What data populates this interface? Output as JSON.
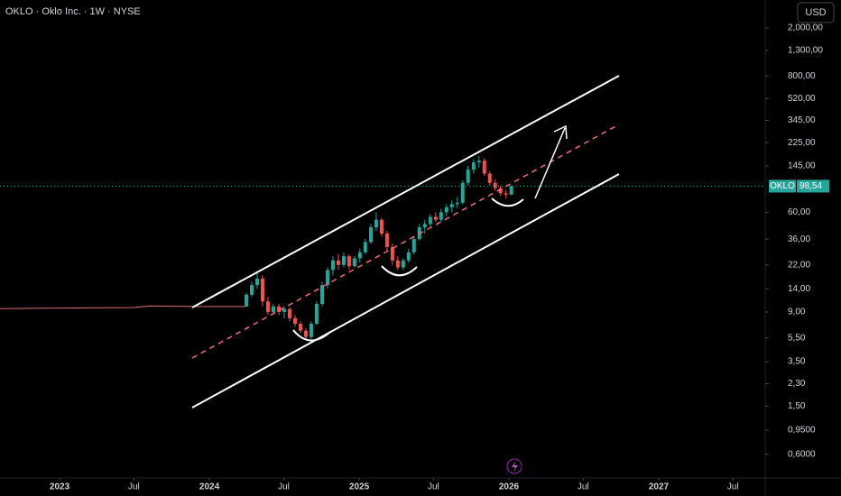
{
  "chart_data": {
    "type": "candlestick",
    "title": "OKLO · Oklo Inc. · 1W · NYSE",
    "currency": "USD",
    "symbol": "OKLO",
    "last_price_label": "98,54",
    "log_scale": true,
    "up_color": "#26a69a",
    "down_color": "#ef5350",
    "xlim": [
      2022.602,
      2027.711
    ],
    "xticks": [
      2023,
      {
        "value": 2023.496,
        "label": "Jul"
      },
      2024,
      {
        "value": 2024.497,
        "label": "Jul"
      },
      2025,
      {
        "value": 2025.496,
        "label": "Jul"
      },
      2026,
      {
        "value": 2026.496,
        "label": "Jul"
      },
      2027,
      {
        "value": 2027.496,
        "label": "Jul"
      }
    ],
    "ylim": [
      0.383,
      3400
    ],
    "yticks": [
      {
        "value": 2000,
        "label": "2,000,00"
      },
      {
        "value": 1300,
        "label": "1,300,00"
      },
      {
        "value": 800,
        "label": "800,00"
      },
      {
        "value": 520,
        "label": "520,00"
      },
      {
        "value": 345,
        "label": "345,00"
      },
      {
        "value": 225,
        "label": "225,00"
      },
      {
        "value": 145,
        "label": "145,00"
      },
      {
        "value": 60,
        "label": "60,00"
      },
      {
        "value": 36,
        "label": "36,00"
      },
      {
        "value": 22,
        "label": "22,00"
      },
      {
        "value": 14,
        "label": "14,00"
      },
      {
        "value": 9,
        "label": "9,00"
      },
      {
        "value": 5.5,
        "label": "5,50"
      },
      {
        "value": 3.5,
        "label": "3,50"
      },
      {
        "value": 2.3,
        "label": "2,30"
      },
      {
        "value": 1.5,
        "label": "1,50"
      },
      {
        "value": 0.95,
        "label": "0,9500"
      },
      {
        "value": 0.6,
        "label": "0,6000"
      }
    ],
    "pre_listing": {
      "color": "#e06c75",
      "x": [
        2022.602,
        2023.0,
        2023.5,
        2023.6,
        2023.9,
        2024.24
      ],
      "values": [
        9.6,
        9.7,
        9.8,
        10.1,
        10,
        10
      ]
    },
    "candles": {
      "x": [
        2024.247,
        2024.283,
        2024.319,
        2024.355,
        2024.391,
        2024.427,
        2024.464,
        2024.5,
        2024.536,
        2024.572,
        2024.608,
        2024.644,
        2024.68,
        2024.716,
        2024.753,
        2024.789,
        2024.825,
        2024.861,
        2024.897,
        2024.933,
        2024.969,
        2025.005,
        2025.041,
        2025.078,
        2025.114,
        2025.15,
        2025.186,
        2025.222,
        2025.258,
        2025.294,
        2025.33,
        2025.366,
        2025.402,
        2025.438,
        2025.475,
        2025.511,
        2025.547,
        2025.583,
        2025.619,
        2025.655,
        2025.691,
        2025.727,
        2025.764,
        2025.8,
        2025.836,
        2025.872,
        2025.908,
        2025.944,
        2025.98,
        2026.016
      ],
      "open": [
        10,
        12.5,
        15,
        17,
        11,
        9,
        10,
        9,
        9.5,
        8,
        7.2,
        6.3,
        5.6,
        7.2,
        10.5,
        15,
        20,
        24,
        22,
        26,
        21.5,
        25,
        28,
        34,
        45,
        52,
        40,
        31,
        24,
        21,
        24,
        28,
        36,
        45,
        48,
        55,
        52,
        60,
        66,
        70,
        72,
        105,
        135,
        155,
        160,
        125,
        105,
        95,
        86,
        84
      ],
      "high": [
        13,
        16,
        19,
        18,
        12,
        10.5,
        10.5,
        10,
        9.8,
        8.5,
        7.5,
        6.6,
        7.5,
        11,
        16,
        21,
        26,
        27,
        28,
        27,
        26,
        30,
        36,
        48,
        60,
        54,
        42,
        33,
        26,
        25,
        30,
        38,
        48,
        52,
        58,
        60,
        64,
        70,
        75,
        80,
        110,
        145,
        165,
        175,
        168,
        130,
        112,
        100,
        92,
        100
      ],
      "low": [
        10,
        12,
        14,
        10,
        8.5,
        8.6,
        8.5,
        8,
        7.5,
        6.8,
        6,
        5.3,
        5.4,
        7,
        10,
        14,
        18,
        20,
        21,
        20,
        21,
        23,
        27,
        33,
        42,
        38,
        29,
        22,
        20,
        20,
        23,
        27,
        35,
        40,
        46,
        50,
        50,
        55,
        60,
        65,
        70,
        100,
        125,
        140,
        120,
        100,
        90,
        82,
        78,
        83
      ],
      "close": [
        12.5,
        15,
        17,
        11,
        9,
        10,
        9,
        9.5,
        8,
        7.2,
        6.3,
        5.6,
        7.2,
        10.5,
        15,
        20,
        24,
        22,
        26,
        21.5,
        25,
        28,
        34,
        45,
        52,
        40,
        31,
        24,
        21,
        24,
        28,
        36,
        45,
        48,
        55,
        52,
        60,
        66,
        70,
        72,
        105,
        135,
        155,
        160,
        125,
        105,
        95,
        86,
        84,
        98.54
      ]
    }
  }
}
